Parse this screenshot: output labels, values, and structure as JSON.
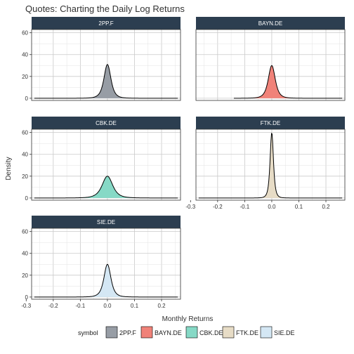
{
  "chart_data": {
    "type": "area",
    "title": "Quotes: Charting the Daily Log Returns",
    "xlabel": "Monthly Returns",
    "ylabel": "Density",
    "xlim": [
      -0.28,
      0.27
    ],
    "ylim": [
      -2,
      63
    ],
    "x_ticks": [
      -0.3,
      -0.2,
      -0.1,
      0.0,
      0.1,
      0.2
    ],
    "x_tick_labels": [
      "-0.3",
      "-0.2",
      "-0.1",
      "0.0",
      "0.1",
      "0.2"
    ],
    "y_ticks": [
      0,
      20,
      40,
      60
    ],
    "y_tick_labels": [
      "0",
      "20",
      "40",
      "60"
    ],
    "grid": true,
    "legend": {
      "position": "bottom",
      "title": "symbol"
    },
    "series": [
      {
        "name": "2PP.F",
        "color": "#979da5",
        "support": [
          -0.27,
          0.26
        ],
        "peak": 31,
        "sd": 0.0135
      },
      {
        "name": "BAYN.DE",
        "color": "#f08279",
        "support": [
          -0.14,
          0.26
        ],
        "peak": 30,
        "sd": 0.0135
      },
      {
        "name": "CBK.DE",
        "color": "#86d9c6",
        "support": [
          -0.27,
          0.26
        ],
        "peak": 20,
        "sd": 0.0205
      },
      {
        "name": "FTK.DE",
        "color": "#e7dcc6",
        "support": [
          -0.27,
          0.26
        ],
        "peak": 60,
        "sd": 0.0065
      },
      {
        "name": "SIE.DE",
        "color": "#d4e7f4",
        "support": [
          -0.27,
          0.26
        ],
        "peak": 30,
        "sd": 0.0135
      }
    ]
  }
}
